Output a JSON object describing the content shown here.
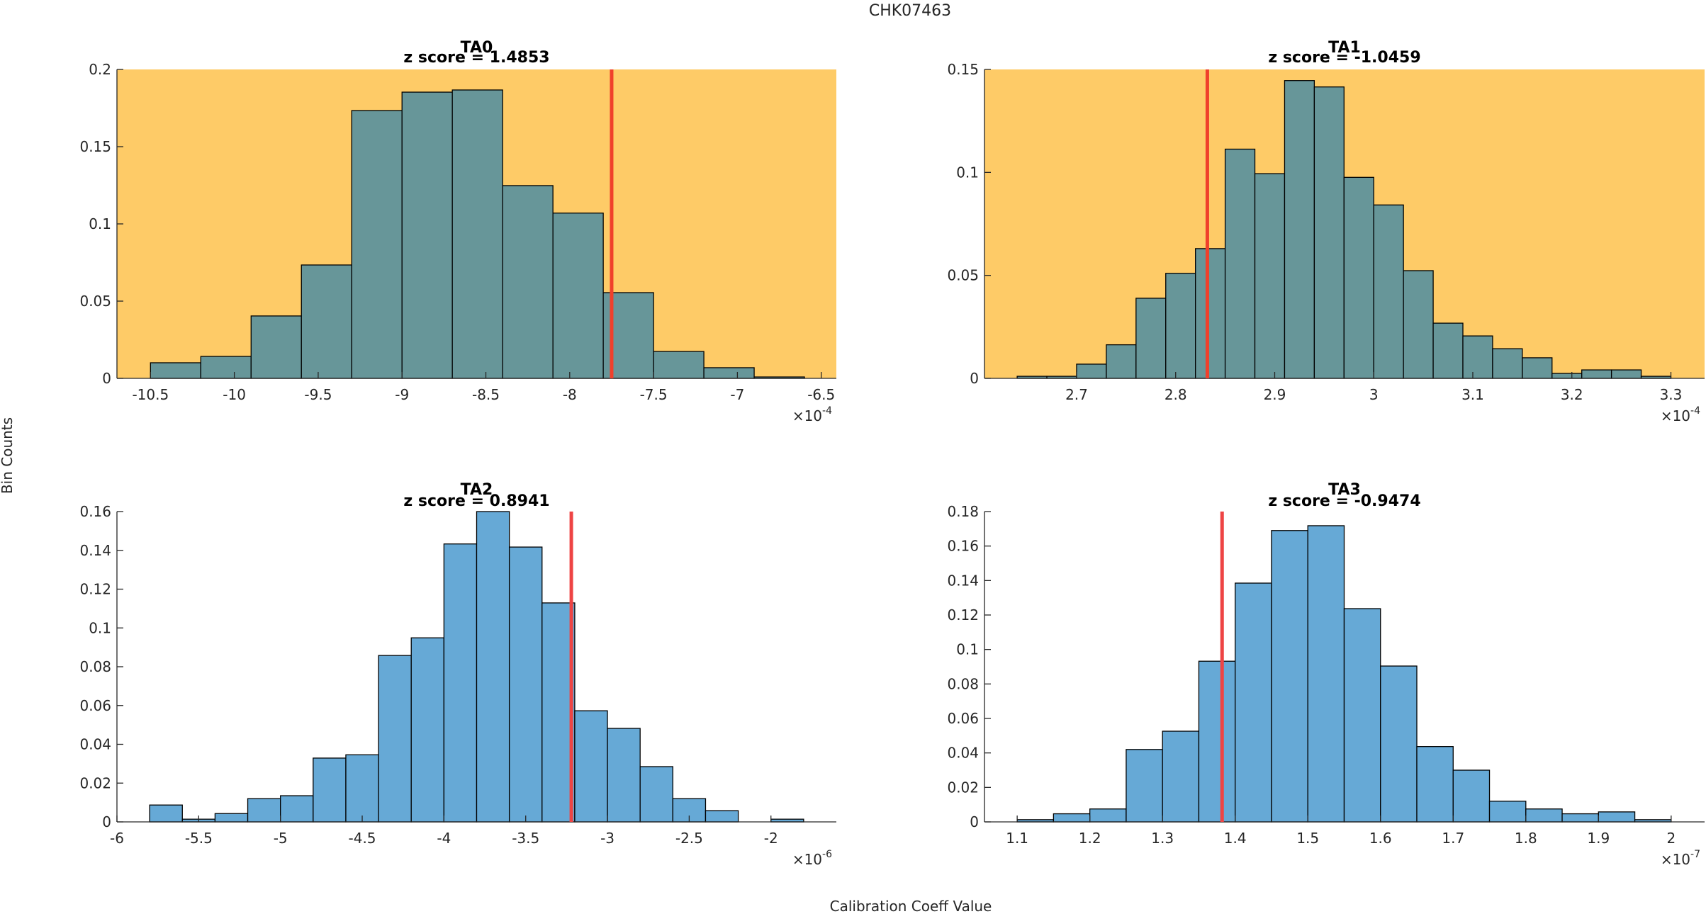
{
  "figure": {
    "suptitle": "CHK07463",
    "ylabel": "Bin Counts",
    "xlabel": "Calibration Coeff Value"
  },
  "colors": {
    "highlight_background": "#FECB67",
    "highlight_bar": "#679699",
    "normal_bar": "#66A9D6",
    "marker_line_top": "#F0402B",
    "marker_line_bottom": "#EE4444",
    "bar_edge": "#000000"
  },
  "chart_data": [
    {
      "type": "bar",
      "name": "TA0",
      "title": "TA0",
      "subtitle": "z score = 1.4853",
      "highlighted": true,
      "xlabel": "",
      "ylabel": "",
      "x_exponent_label": "×10",
      "x_exponent": "-4",
      "xlim": [
        -10.7,
        -6.41
      ],
      "ylim": [
        0,
        0.2
      ],
      "xticks": [
        -10.5,
        -10,
        -9.5,
        -9,
        -8.5,
        -8,
        -7.5,
        -7,
        -6.5
      ],
      "xtick_labels": [
        "-10.5",
        "-10",
        "-9.5",
        "-9",
        "-8.5",
        "-8",
        "-7.5",
        "-7",
        "-6.5"
      ],
      "yticks": [
        0,
        0.05,
        0.1,
        0.15,
        0.2
      ],
      "ytick_labels": [
        "0",
        "0.05",
        "0.1",
        "0.15",
        "0.2"
      ],
      "bin_start": -10.5,
      "bin_width": 0.3,
      "values": [
        0.0101,
        0.0142,
        0.0404,
        0.0734,
        0.1734,
        0.1853,
        0.1867,
        0.1248,
        0.107,
        0.0555,
        0.0174,
        0.0069,
        0.0009
      ],
      "marker_x": -7.75
    },
    {
      "type": "bar",
      "name": "TA1",
      "title": "TA1",
      "subtitle": "z score = -1.0459",
      "highlighted": true,
      "xlabel": "",
      "ylabel": "",
      "x_exponent_label": "×10",
      "x_exponent": "-4",
      "xlim": [
        2.607,
        3.334
      ],
      "ylim": [
        0,
        0.15
      ],
      "xticks": [
        2.7,
        2.8,
        2.9,
        3.0,
        3.1,
        3.2,
        3.3
      ],
      "xtick_labels": [
        "2.7",
        "2.8",
        "2.9",
        "3",
        "3.1",
        "3.2",
        "3.3"
      ],
      "yticks": [
        0,
        0.05,
        0.1,
        0.15
      ],
      "ytick_labels": [
        "0",
        "0.05",
        "0.1",
        "0.15"
      ],
      "bin_start": 2.64,
      "bin_width": 0.03,
      "values": [
        0.001,
        0.001,
        0.0069,
        0.0163,
        0.0389,
        0.051,
        0.063,
        0.1113,
        0.0994,
        0.1446,
        0.1415,
        0.0976,
        0.0842,
        0.0523,
        0.0268,
        0.0206,
        0.0144,
        0.01,
        0.0024,
        0.0041,
        0.0041,
        0.001
      ],
      "marker_x": 2.832
    },
    {
      "type": "bar",
      "name": "TA2",
      "title": "TA2",
      "subtitle": "z score = 0.8941",
      "highlighted": false,
      "xlabel": "",
      "ylabel": "",
      "x_exponent_label": "×10",
      "x_exponent": "-6",
      "xlim": [
        -6,
        -1.6
      ],
      "ylim": [
        0,
        0.16
      ],
      "xticks": [
        -6,
        -5.5,
        -5,
        -4.5,
        -4,
        -3.5,
        -3,
        -2.5,
        -2
      ],
      "xtick_labels": [
        "-6",
        "-5.5",
        "-5",
        "-4.5",
        "-4",
        "-3.5",
        "-3",
        "-2.5",
        "-2"
      ],
      "yticks": [
        0,
        0.02,
        0.04,
        0.06,
        0.08,
        0.1,
        0.12,
        0.14,
        0.16
      ],
      "ytick_labels": [
        "0",
        "0.02",
        "0.04",
        "0.06",
        "0.08",
        "0.1",
        "0.12",
        "0.14",
        "0.16"
      ],
      "bin_start": -5.8,
      "bin_width": 0.2,
      "values": [
        0.0087,
        0.0014,
        0.0043,
        0.012,
        0.0135,
        0.0329,
        0.0346,
        0.0858,
        0.0949,
        0.1433,
        0.16,
        0.1417,
        0.1129,
        0.0573,
        0.0482,
        0.0285,
        0.012,
        0.0058,
        0.0,
        0.0014
      ],
      "marker_x": -3.221
    },
    {
      "type": "bar",
      "name": "TA3",
      "title": "TA3",
      "subtitle": "z score = -0.9474",
      "highlighted": false,
      "xlabel": "",
      "ylabel": "",
      "x_exponent_label": "×10",
      "x_exponent": "-7",
      "xlim": [
        1.055,
        2.046
      ],
      "ylim": [
        0,
        0.18
      ],
      "xticks": [
        1.1,
        1.2,
        1.3,
        1.4,
        1.5,
        1.6,
        1.7,
        1.8,
        1.9,
        2.0
      ],
      "xtick_labels": [
        "1.1",
        "1.2",
        "1.3",
        "1.4",
        "1.5",
        "1.6",
        "1.7",
        "1.8",
        "1.9",
        "2"
      ],
      "yticks": [
        0,
        0.02,
        0.04,
        0.06,
        0.08,
        0.1,
        0.12,
        0.14,
        0.16,
        0.18
      ],
      "ytick_labels": [
        "0",
        "0.02",
        "0.04",
        "0.06",
        "0.08",
        "0.1",
        "0.12",
        "0.14",
        "0.16",
        "0.18"
      ],
      "bin_start": 1.1,
      "bin_width": 0.05,
      "values": [
        0.0013,
        0.0047,
        0.0075,
        0.042,
        0.0526,
        0.0932,
        0.1385,
        0.169,
        0.1718,
        0.1237,
        0.0904,
        0.0437,
        0.03,
        0.012,
        0.0075,
        0.0047,
        0.0058,
        0.0013
      ],
      "marker_x": 1.382
    }
  ]
}
